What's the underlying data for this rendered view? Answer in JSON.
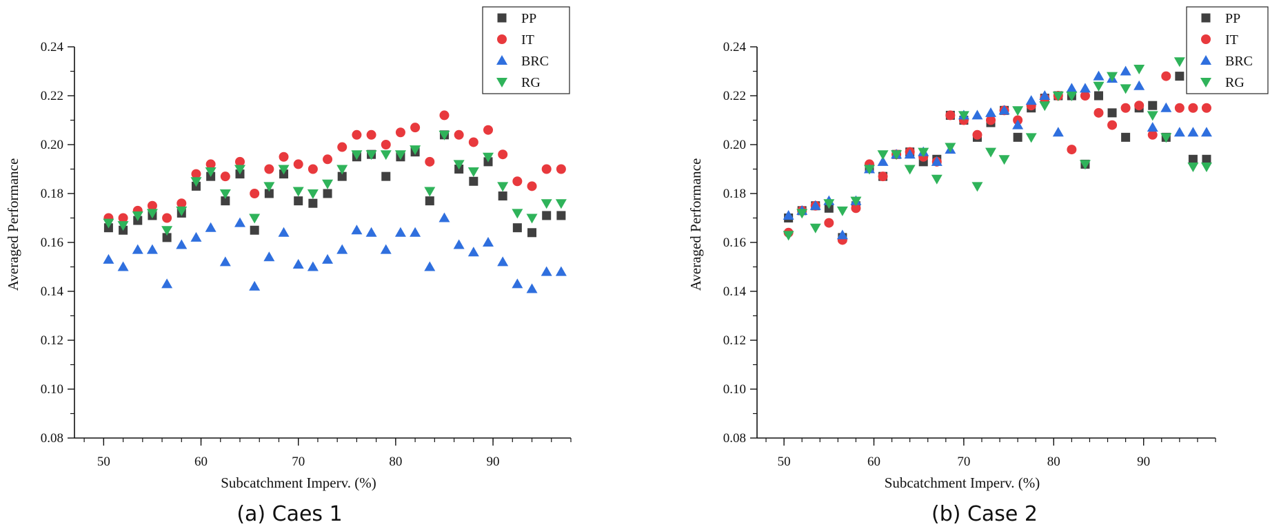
{
  "chart_data": [
    {
      "type": "scatter",
      "caption": "(a) Caes 1",
      "xlabel": "Subcatchment Imperv. (%)",
      "ylabel": "Averaged Performance",
      "xlim": [
        47,
        98
      ],
      "ylim": [
        0.08,
        0.24
      ],
      "xticks": [
        50,
        60,
        70,
        80,
        90
      ],
      "yticks": [
        0.08,
        0.1,
        0.12,
        0.14,
        0.16,
        0.18,
        0.2,
        0.22,
        0.24
      ],
      "legend_position": "top-right",
      "x": [
        50.5,
        52.0,
        53.5,
        55.0,
        56.5,
        58.0,
        59.5,
        61.0,
        62.5,
        64.0,
        65.5,
        67.0,
        68.5,
        70.0,
        71.5,
        73.0,
        74.5,
        76.0,
        77.5,
        79.0,
        80.5,
        82.0,
        83.5,
        85.0,
        86.5,
        88.0,
        89.5,
        91.0,
        92.5,
        94.0,
        95.5,
        97.0
      ],
      "series": [
        {
          "name": "PP",
          "marker": "square",
          "color": "#404040",
          "values": [
            0.166,
            0.165,
            0.169,
            0.171,
            0.162,
            0.172,
            0.183,
            0.187,
            0.177,
            0.188,
            0.165,
            0.18,
            0.188,
            0.177,
            0.176,
            0.18,
            0.187,
            0.195,
            0.196,
            0.187,
            0.195,
            0.197,
            0.177,
            0.204,
            0.19,
            0.185,
            0.193,
            0.179,
            0.166,
            0.164,
            0.171,
            0.171
          ]
        },
        {
          "name": "IT",
          "marker": "circle",
          "color": "#e8393d",
          "values": [
            0.17,
            0.17,
            0.173,
            0.175,
            0.17,
            0.176,
            0.188,
            0.192,
            0.187,
            0.193,
            0.18,
            0.19,
            0.195,
            0.192,
            0.19,
            0.194,
            0.199,
            0.204,
            0.204,
            0.2,
            0.205,
            0.207,
            0.193,
            0.212,
            0.204,
            0.201,
            0.206,
            0.196,
            0.185,
            0.183,
            0.19,
            0.19
          ]
        },
        {
          "name": "BRC",
          "marker": "triangle-up",
          "color": "#2f6fde",
          "values": [
            0.153,
            0.15,
            0.157,
            0.157,
            0.143,
            0.159,
            0.162,
            0.166,
            0.152,
            0.168,
            0.142,
            0.154,
            0.164,
            0.151,
            0.15,
            0.153,
            0.157,
            0.165,
            0.164,
            0.157,
            0.164,
            0.164,
            0.15,
            0.17,
            0.159,
            0.156,
            0.16,
            0.152,
            0.143,
            0.141,
            0.148,
            0.148
          ]
        },
        {
          "name": "RG",
          "marker": "triangle-down",
          "color": "#2fb35a",
          "values": [
            0.168,
            0.167,
            0.171,
            0.172,
            0.165,
            0.173,
            0.185,
            0.189,
            0.18,
            0.19,
            0.17,
            0.183,
            0.19,
            0.181,
            0.18,
            0.184,
            0.19,
            0.196,
            0.196,
            0.196,
            0.196,
            0.198,
            0.181,
            0.204,
            0.192,
            0.189,
            0.195,
            0.183,
            0.172,
            0.17,
            0.176,
            0.176
          ]
        }
      ]
    },
    {
      "type": "scatter",
      "caption": "(b) Case 2",
      "xlabel": "Subcatchment Imperv. (%)",
      "ylabel": "Averaged Performance",
      "xlim": [
        47,
        98
      ],
      "ylim": [
        0.08,
        0.24
      ],
      "xticks": [
        50,
        60,
        70,
        80,
        90
      ],
      "yticks": [
        0.08,
        0.1,
        0.12,
        0.14,
        0.16,
        0.18,
        0.2,
        0.22,
        0.24
      ],
      "legend_position": "top-right",
      "x": [
        50.5,
        52.0,
        53.5,
        55.0,
        56.5,
        58.0,
        59.5,
        61.0,
        62.5,
        64.0,
        65.5,
        67.0,
        68.5,
        70.0,
        71.5,
        73.0,
        74.5,
        76.0,
        77.5,
        79.0,
        80.5,
        82.0,
        83.5,
        85.0,
        86.5,
        88.0,
        89.5,
        91.0,
        92.5,
        94.0,
        95.5,
        97.0
      ],
      "series": [
        {
          "name": "PP",
          "marker": "square",
          "color": "#404040",
          "values": [
            0.17,
            0.173,
            0.175,
            0.174,
            0.162,
            0.175,
            0.191,
            0.187,
            0.196,
            0.197,
            0.193,
            0.194,
            0.212,
            0.21,
            0.203,
            0.209,
            0.214,
            0.203,
            0.215,
            0.219,
            0.22,
            0.22,
            0.192,
            0.22,
            0.213,
            0.203,
            0.215,
            0.216,
            0.203,
            0.228,
            0.194,
            0.194
          ]
        },
        {
          "name": "IT",
          "marker": "circle",
          "color": "#e8393d",
          "values": [
            0.164,
            0.173,
            0.175,
            0.168,
            0.161,
            0.174,
            0.192,
            0.187,
            0.196,
            0.197,
            0.195,
            0.193,
            0.212,
            0.21,
            0.204,
            0.21,
            0.214,
            0.21,
            0.216,
            0.219,
            0.22,
            0.198,
            0.22,
            0.213,
            0.208,
            0.215,
            0.216,
            0.204,
            0.228,
            0.215,
            0.215,
            0.215
          ]
        },
        {
          "name": "BRC",
          "marker": "triangle-up",
          "color": "#2f6fde",
          "values": [
            0.171,
            0.173,
            0.175,
            0.177,
            0.163,
            0.177,
            0.19,
            0.193,
            0.196,
            0.196,
            0.197,
            0.193,
            0.198,
            0.212,
            0.212,
            0.213,
            0.214,
            0.208,
            0.218,
            0.22,
            0.205,
            0.223,
            0.223,
            0.228,
            0.227,
            0.23,
            0.224,
            0.207,
            0.215,
            0.205,
            0.205,
            0.205
          ]
        },
        {
          "name": "RG",
          "marker": "triangle-down",
          "color": "#2fb35a",
          "values": [
            0.163,
            0.172,
            0.166,
            0.176,
            0.173,
            0.177,
            0.19,
            0.196,
            0.196,
            0.19,
            0.197,
            0.186,
            0.199,
            0.212,
            0.183,
            0.197,
            0.194,
            0.214,
            0.203,
            0.216,
            0.22,
            0.22,
            0.192,
            0.224,
            0.228,
            0.223,
            0.231,
            0.212,
            0.203,
            0.234,
            0.191,
            0.191
          ]
        }
      ]
    }
  ]
}
